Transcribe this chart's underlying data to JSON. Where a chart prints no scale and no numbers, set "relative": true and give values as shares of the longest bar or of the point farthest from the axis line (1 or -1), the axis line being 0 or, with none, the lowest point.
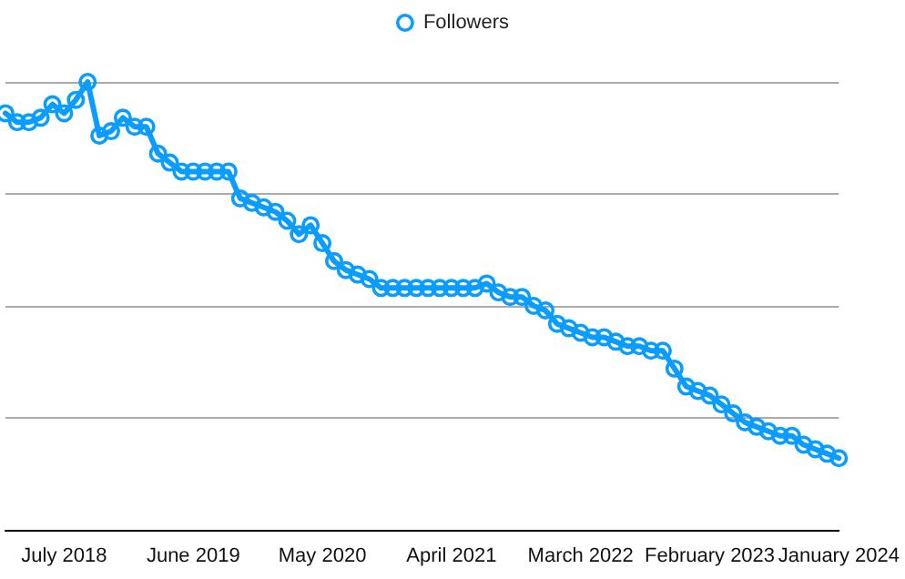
{
  "chart_data": {
    "type": "line",
    "relative": true,
    "categories": [
      null,
      null,
      null,
      null,
      null,
      "July 2018",
      null,
      null,
      null,
      null,
      null,
      null,
      null,
      null,
      null,
      null,
      "June 2019",
      null,
      null,
      null,
      null,
      null,
      null,
      null,
      null,
      null,
      null,
      "May 2020",
      null,
      null,
      null,
      null,
      null,
      null,
      null,
      null,
      null,
      null,
      "April 2021",
      null,
      null,
      null,
      null,
      null,
      null,
      null,
      null,
      null,
      null,
      "March 2022",
      null,
      null,
      null,
      null,
      null,
      null,
      null,
      null,
      null,
      null,
      "February 2023",
      null,
      null,
      null,
      null,
      null,
      null,
      null,
      null,
      null,
      null,
      "January 2024"
    ],
    "series": [
      {
        "name": "Followers",
        "color": "#0a9dff",
        "values": [
          0.93,
          0.91,
          0.91,
          0.92,
          0.95,
          0.93,
          0.96,
          1.0,
          0.88,
          0.89,
          0.92,
          0.9,
          0.9,
          0.84,
          0.82,
          0.8,
          0.8,
          0.8,
          0.8,
          0.8,
          0.74,
          0.73,
          0.72,
          0.71,
          0.69,
          0.66,
          0.68,
          0.64,
          0.6,
          0.58,
          0.57,
          0.56,
          0.54,
          0.54,
          0.54,
          0.54,
          0.54,
          0.54,
          0.54,
          0.54,
          0.54,
          0.55,
          0.53,
          0.52,
          0.52,
          0.5,
          0.49,
          0.46,
          0.45,
          0.44,
          0.43,
          0.43,
          0.42,
          0.41,
          0.41,
          0.4,
          0.4,
          0.36,
          0.32,
          0.31,
          0.3,
          0.28,
          0.26,
          0.24,
          0.23,
          0.22,
          0.21,
          0.21,
          0.19,
          0.18,
          0.17,
          0.16
        ]
      }
    ],
    "grid": "y",
    "legend": "top",
    "marker": "circle",
    "line_style": "solid"
  }
}
